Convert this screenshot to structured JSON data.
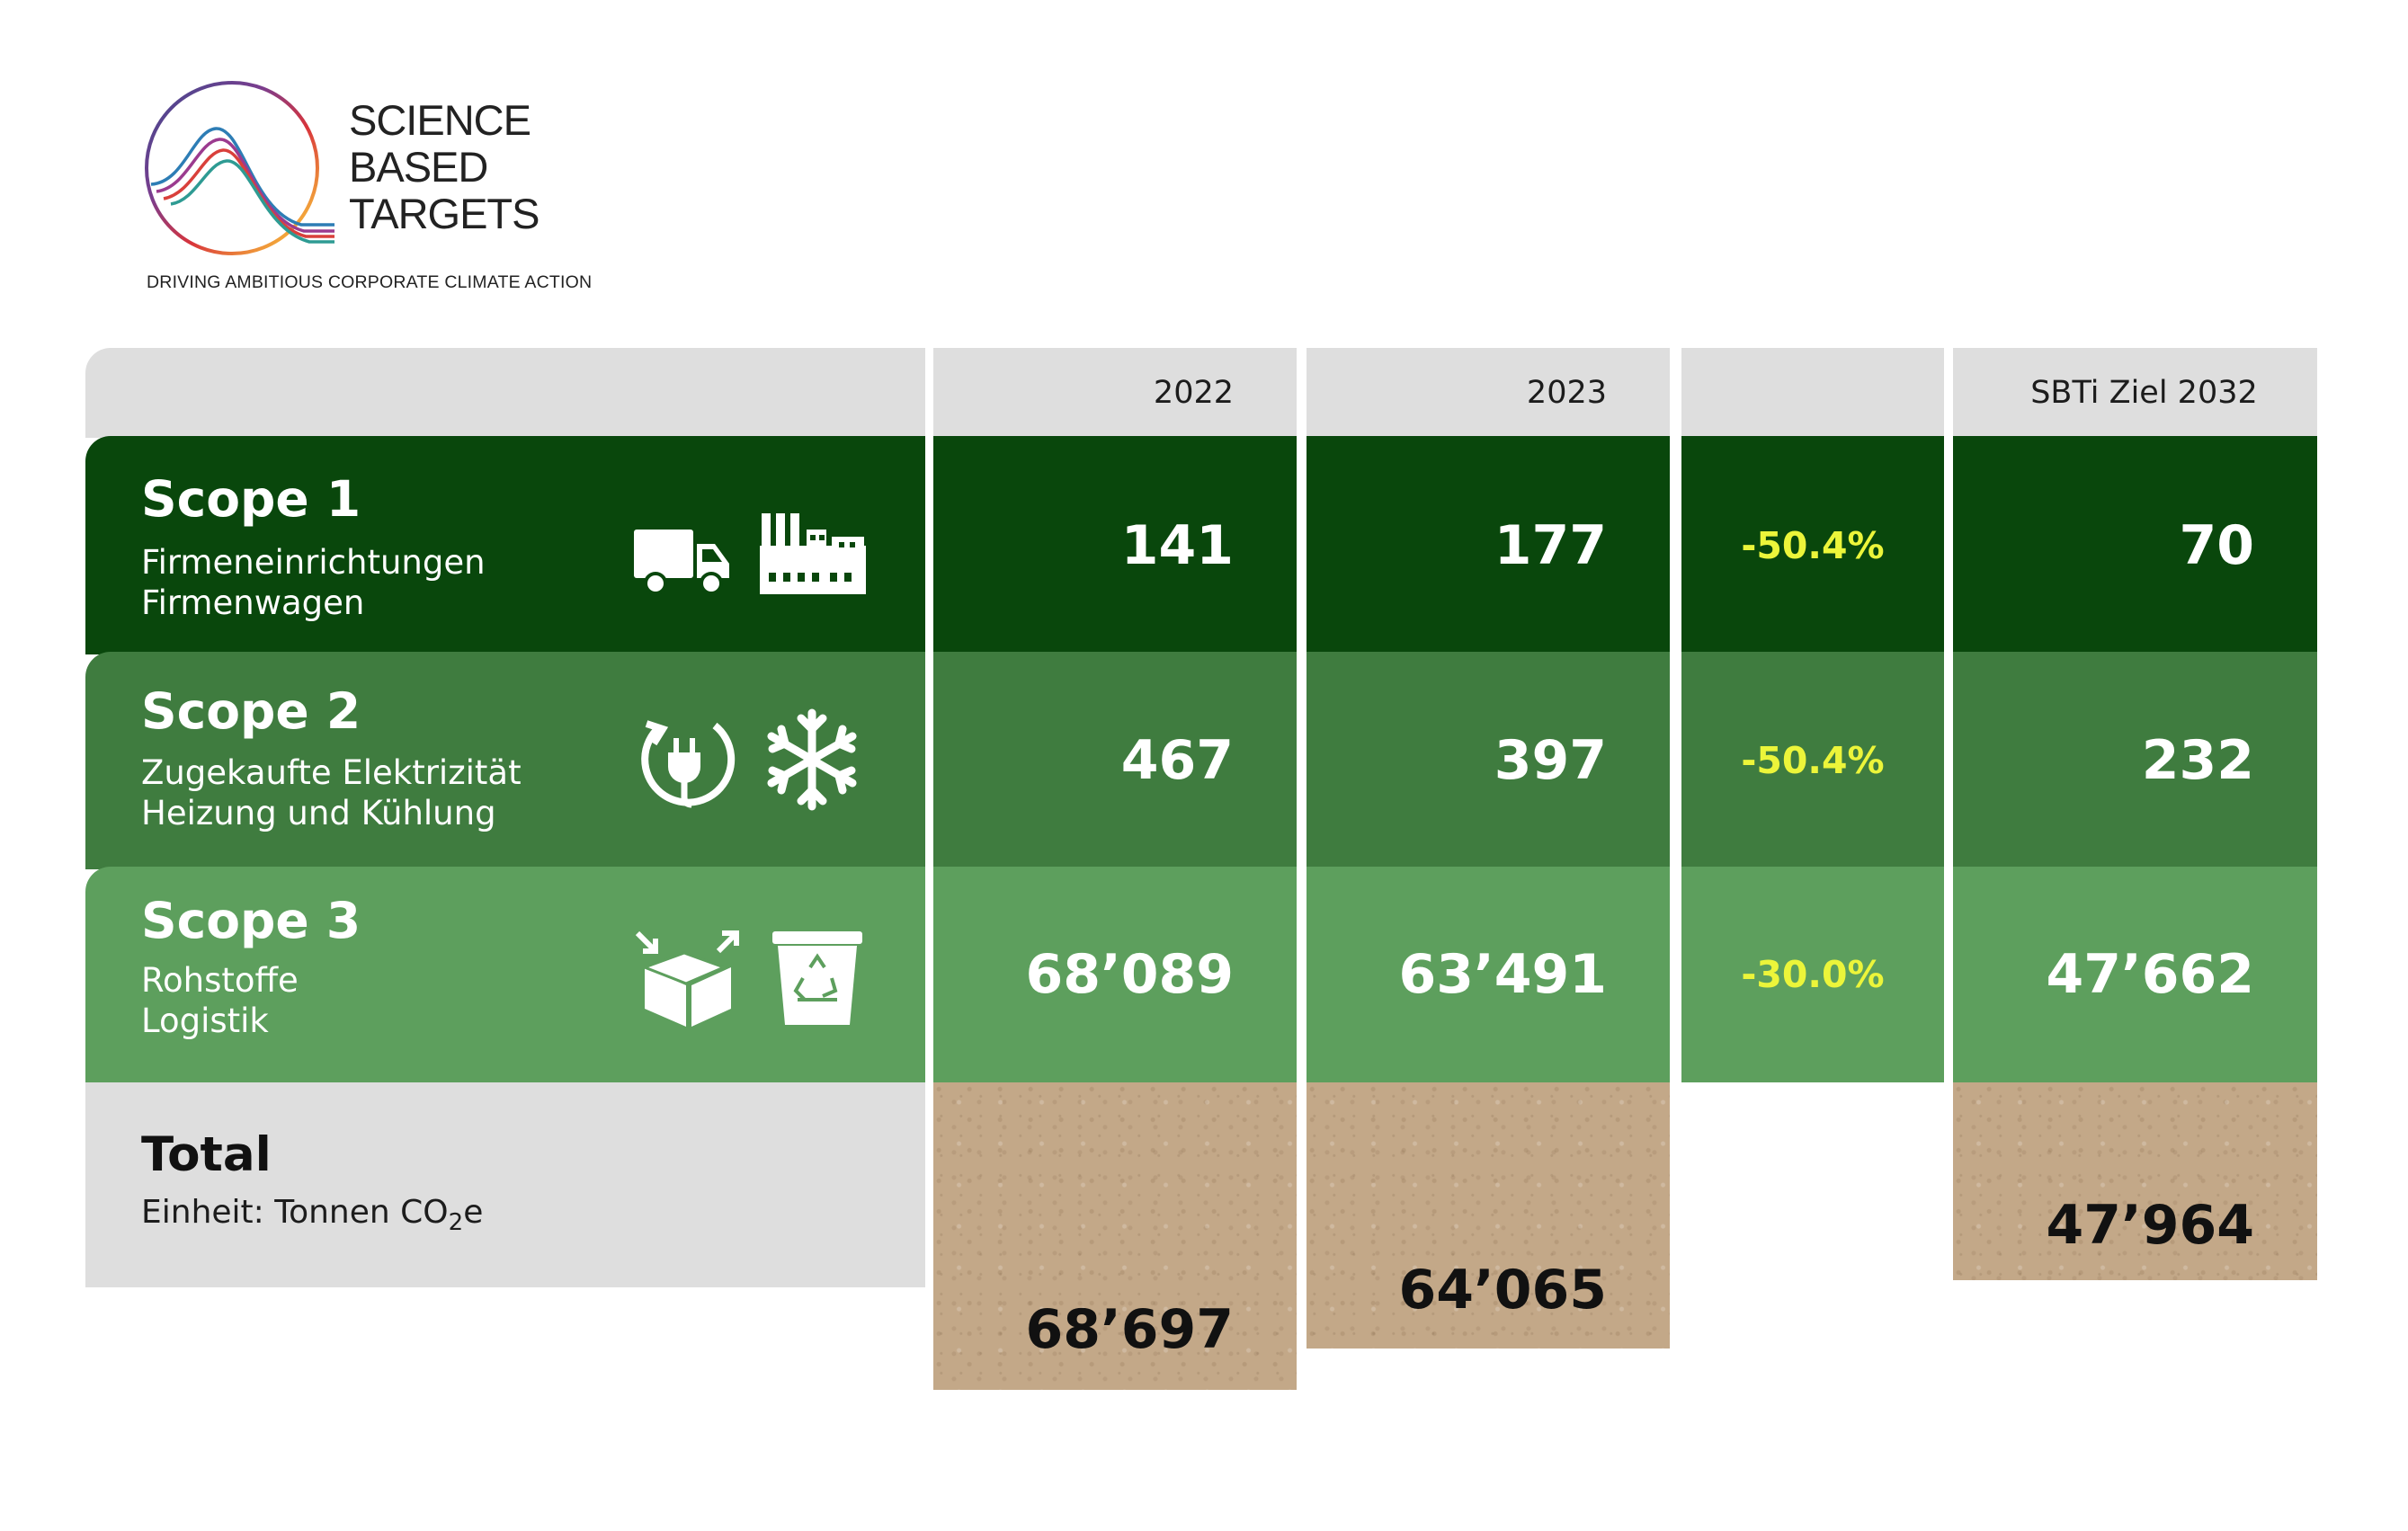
{
  "logo": {
    "lines": [
      "SCIENCE",
      "BASED",
      "TARGETS"
    ],
    "tagline": "DRIVING AMBITIOUS CORPORATE CLIMATE ACTION"
  },
  "header": {
    "col_2022": "2022",
    "col_2023": "2023",
    "col_change": "",
    "col_target": "SBTi Ziel 2032"
  },
  "rows": [
    {
      "title": "Scope 1",
      "sub1": "Firmeneinrichtungen",
      "sub2": "Firmenwagen",
      "v2022": "141",
      "v2023": "177",
      "change": "-50.4%",
      "target": "70",
      "icons": [
        "truck-icon",
        "factory-icon"
      ]
    },
    {
      "title": "Scope 2",
      "sub1": "Zugekaufte Elektrizität",
      "sub2": "Heizung und Kühlung",
      "v2022": "467",
      "v2023": "397",
      "change": "-50.4%",
      "target": "232",
      "icons": [
        "power-plug-icon",
        "snowflake-icon"
      ]
    },
    {
      "title": "Scope 3",
      "sub1": "Rohstoffe",
      "sub2": "Logistik",
      "v2022": "68’089",
      "v2023": "63’491",
      "change": "-30.0%",
      "target": "47’662",
      "icons": [
        "open-box-icon",
        "recycling-bin-icon"
      ]
    }
  ],
  "total": {
    "title": "Total",
    "unit_prefix": "Einheit: Tonnen CO",
    "unit_sub": "2",
    "unit_suffix": "e",
    "v2022": "68’697",
    "v2023": "64’065",
    "target": "47’964"
  },
  "colors": {
    "scope1": "#09470c",
    "scope2": "#3f7c3f",
    "scope3": "#5d9f5d",
    "header_gray": "#dedede",
    "percent_yellow": "#ecf53a",
    "kraft": "#c3a888"
  }
}
